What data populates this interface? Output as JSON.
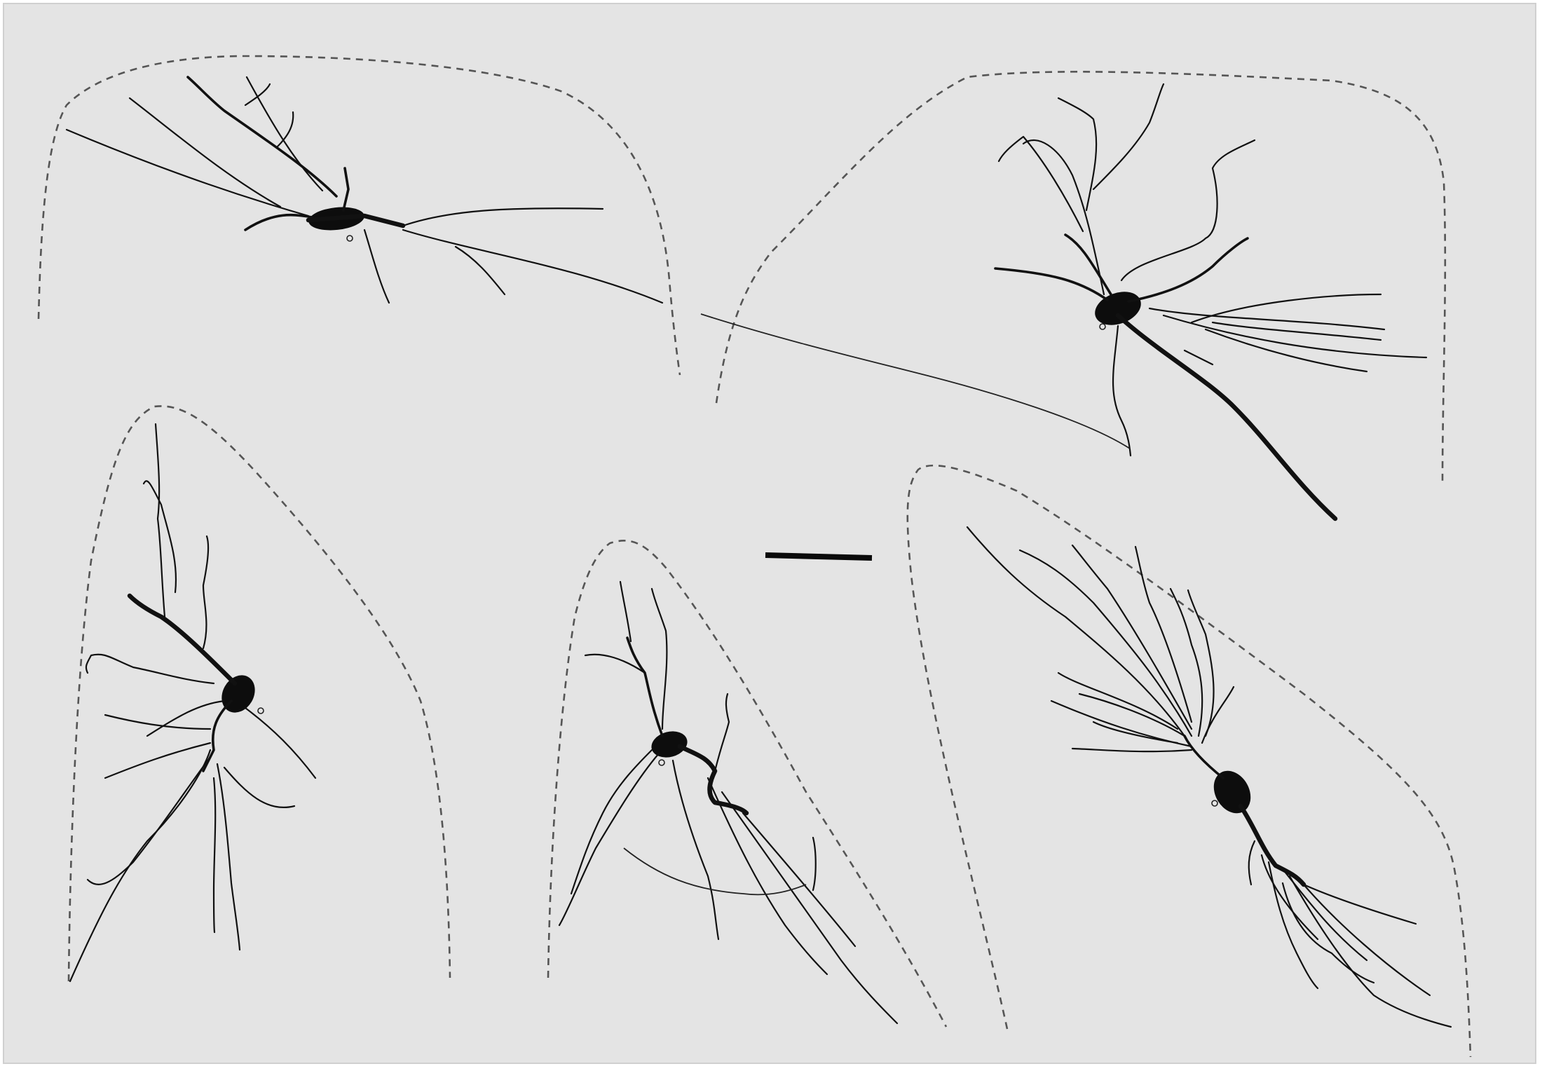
{
  "figure": {
    "background_color": "#e4e4e4",
    "ink_color": "#111111",
    "outline_style": "dashed",
    "panels": [
      {
        "id": "top-left-neuron",
        "outline": "dashed-region-boundary"
      },
      {
        "id": "top-right-neuron",
        "outline": "dashed-region-boundary"
      },
      {
        "id": "bottom-left-neuron",
        "outline": "dashed-region-boundary"
      },
      {
        "id": "bottom-middle-neuron",
        "outline": "dashed-region-boundary"
      },
      {
        "id": "bottom-right-neuron",
        "outline": "dashed-region-boundary"
      }
    ],
    "scale_bar": {
      "label": ""
    }
  }
}
